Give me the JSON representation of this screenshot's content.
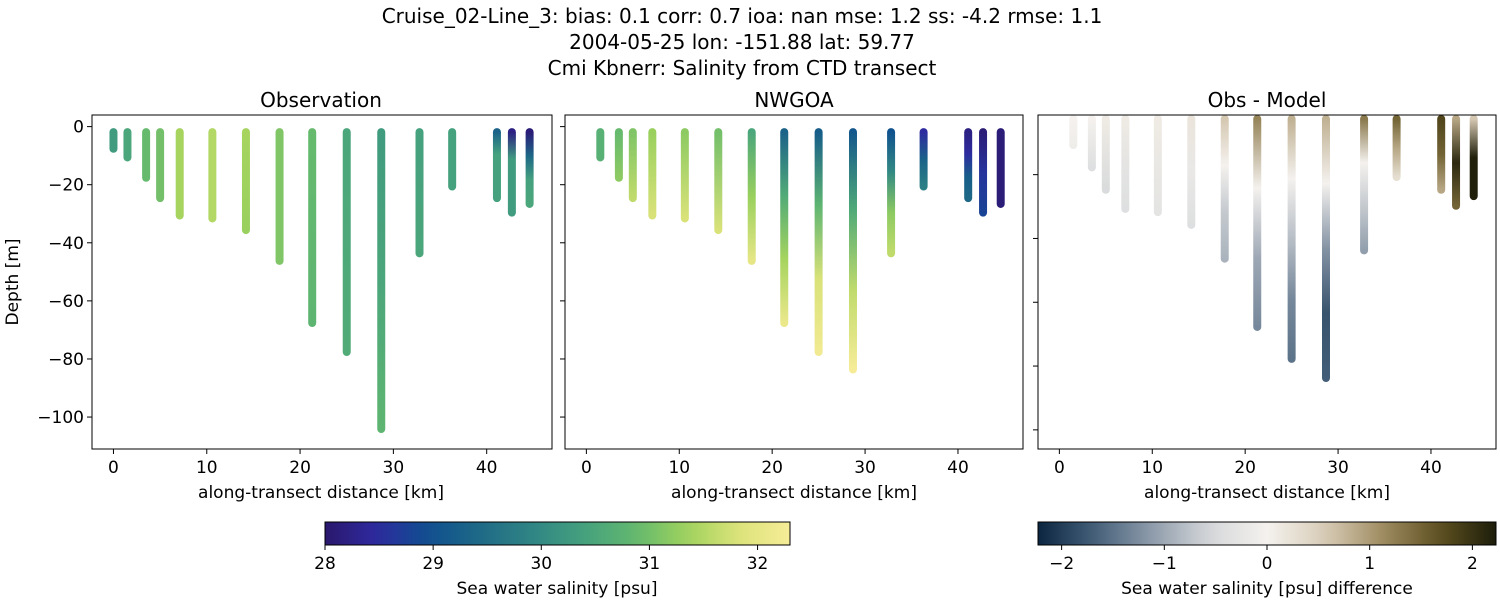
{
  "suptitle": {
    "line1": "Cruise_02-Line_3: bias: 0.1  corr: 0.7  ioa: nan  mse: 1.2  ss: -4.2  rmse: 1.1",
    "line2": "2004-05-25 lon: -151.88 lat: 59.77",
    "line3": "Cmi Kbnerr: Salinity from CTD transect"
  },
  "chart_data": [
    {
      "type": "scatter",
      "title": "Observation",
      "xlabel": "along-transect distance [km]",
      "ylabel": "Depth [m]",
      "xlim": [
        -2.3,
        47.0
      ],
      "ylim": [
        -111,
        4
      ],
      "xticks": [
        0,
        10,
        20,
        30,
        40
      ],
      "yticks": [
        0,
        -20,
        -40,
        -60,
        -80,
        -100
      ],
      "colormap": "haline",
      "stations": [
        {
          "x": 0,
          "max_depth": -9,
          "values": [
            30.3
          ]
        },
        {
          "x": 1.5,
          "max_depth": -12,
          "values": [
            30.5
          ]
        },
        {
          "x": 3.5,
          "max_depth": -19,
          "values": [
            30.9
          ]
        },
        {
          "x": 5.0,
          "max_depth": -26,
          "values": [
            31.0
          ]
        },
        {
          "x": 7.1,
          "max_depth": -32,
          "values": [
            31.4
          ]
        },
        {
          "x": 10.6,
          "max_depth": -33,
          "values": [
            31.5
          ]
        },
        {
          "x": 14.2,
          "max_depth": -37,
          "values": [
            31.4,
            31.3
          ]
        },
        {
          "x": 17.8,
          "max_depth": -47.6,
          "values": [
            31.1
          ]
        },
        {
          "x": 21.3,
          "max_depth": -69,
          "values": [
            30.9,
            30.8
          ]
        },
        {
          "x": 25.0,
          "max_depth": -79,
          "values": [
            30.5,
            30.6
          ]
        },
        {
          "x": 28.7,
          "max_depth": -105.5,
          "values": [
            30.3,
            30.5,
            30.8
          ]
        },
        {
          "x": 32.8,
          "max_depth": -45,
          "values": [
            30.4,
            30.5
          ]
        },
        {
          "x": 36.3,
          "max_depth": -22,
          "values": [
            30.4
          ]
        },
        {
          "x": 41.1,
          "max_depth": -26,
          "values": [
            29.3,
            30.4,
            30.4,
            30.4
          ]
        },
        {
          "x": 42.7,
          "max_depth": -31,
          "values": [
            28.2,
            30.3,
            30.3,
            30.3
          ]
        },
        {
          "x": 44.6,
          "max_depth": -28,
          "values": [
            28.1,
            29.4,
            30.4,
            30.5
          ]
        }
      ]
    },
    {
      "type": "scatter",
      "title": "NWGOA",
      "xlabel": "along-transect distance [km]",
      "xlim": [
        -2.3,
        47.0
      ],
      "ylim": [
        -111,
        4
      ],
      "xticks": [
        0,
        10,
        20,
        30,
        40
      ],
      "yticks": [
        0,
        -20,
        -40,
        -60,
        -80,
        -100
      ],
      "colormap": "haline",
      "stations": [
        {
          "x": 1.5,
          "max_depth": -12,
          "values": [
            30.7
          ]
        },
        {
          "x": 3.5,
          "max_depth": -19,
          "values": [
            30.9,
            31.2
          ]
        },
        {
          "x": 5.0,
          "max_depth": -26,
          "values": [
            31.1,
            31.6
          ]
        },
        {
          "x": 7.1,
          "max_depth": -32,
          "values": [
            31.3,
            31.8
          ]
        },
        {
          "x": 10.6,
          "max_depth": -33,
          "values": [
            31.2,
            31.8
          ]
        },
        {
          "x": 14.2,
          "max_depth": -37,
          "values": [
            31.0,
            31.8
          ]
        },
        {
          "x": 17.8,
          "max_depth": -47.6,
          "values": [
            30.5,
            31.3,
            32.0
          ]
        },
        {
          "x": 21.3,
          "max_depth": -69,
          "values": [
            29.3,
            30.6,
            31.4,
            32.1
          ]
        },
        {
          "x": 25.0,
          "max_depth": -79,
          "values": [
            29.2,
            30.8,
            31.8,
            32.2
          ]
        },
        {
          "x": 28.7,
          "max_depth": -85,
          "values": [
            29.1,
            30.6,
            31.6,
            32.3
          ]
        },
        {
          "x": 32.8,
          "max_depth": -45,
          "values": [
            29.0,
            30.0,
            31.2,
            31.6
          ]
        },
        {
          "x": 36.3,
          "max_depth": -22,
          "values": [
            28.5,
            29.3,
            29.8
          ]
        },
        {
          "x": 41.1,
          "max_depth": -26,
          "values": [
            28.2,
            28.5,
            29.2,
            29.4
          ]
        },
        {
          "x": 42.7,
          "max_depth": -31,
          "values": [
            28.1,
            28.6,
            28.8
          ]
        },
        {
          "x": 44.6,
          "max_depth": -28,
          "values": [
            28.1,
            28.1
          ]
        }
      ]
    },
    {
      "type": "scatter",
      "title": "Obs - Model",
      "xlabel": "along-transect distance [km]",
      "xlim": [
        -2.3,
        47.0
      ],
      "ylim": [
        -106,
        -1.3
      ],
      "xticks": [
        0,
        10,
        20,
        30,
        40
      ],
      "yticks": [
        -20,
        -40,
        -60,
        -80,
        -100
      ],
      "colormap": "diff",
      "stations": [
        {
          "x": 1.5,
          "max_depth": -12,
          "values": [
            0,
            -0.1
          ]
        },
        {
          "x": 3.5,
          "max_depth": -19,
          "values": [
            0,
            -0.4
          ]
        },
        {
          "x": 5.0,
          "max_depth": -26,
          "values": [
            0.1,
            -0.5
          ]
        },
        {
          "x": 7.1,
          "max_depth": -32,
          "values": [
            0.1,
            -0.3,
            -0.4
          ]
        },
        {
          "x": 10.6,
          "max_depth": -33,
          "values": [
            0.1,
            -0.3
          ]
        },
        {
          "x": 14.2,
          "max_depth": -37,
          "values": [
            0.2,
            -0.2,
            -0.4
          ]
        },
        {
          "x": 17.8,
          "max_depth": -47.6,
          "values": [
            0.6,
            0,
            -0.7,
            -0.9
          ]
        },
        {
          "x": 21.3,
          "max_depth": -69,
          "values": [
            1.2,
            0,
            -1.0,
            -1.3
          ]
        },
        {
          "x": 25.0,
          "max_depth": -79,
          "values": [
            0.8,
            0,
            -0.8,
            -1.3,
            -1.5
          ]
        },
        {
          "x": 28.7,
          "max_depth": -85,
          "values": [
            0.8,
            0,
            -1.2,
            -1.8,
            -1.7
          ]
        },
        {
          "x": 32.8,
          "max_depth": -45,
          "values": [
            1.3,
            0,
            -0.7,
            -1.1
          ]
        },
        {
          "x": 36.3,
          "max_depth": -22,
          "values": [
            1.5,
            0.9,
            0.3
          ]
        },
        {
          "x": 41.1,
          "max_depth": -26,
          "values": [
            1.8,
            1.5,
            0.9
          ]
        },
        {
          "x": 42.7,
          "max_depth": -31,
          "values": [
            0.9,
            2.1,
            1.5
          ]
        },
        {
          "x": 44.6,
          "max_depth": -28,
          "values": [
            0.6,
            2.2,
            2.2
          ]
        }
      ]
    }
  ],
  "colorbars": [
    {
      "label": "Sea water salinity [psu]",
      "range": [
        28,
        32.3
      ],
      "ticks": [
        "28",
        "29",
        "30",
        "31",
        "32"
      ],
      "tick_values": [
        28,
        29,
        30,
        31,
        32
      ],
      "colormap": "haline"
    },
    {
      "label": "Sea water salinity [psu] difference",
      "range": [
        -2.23,
        2.23
      ],
      "ticks": [
        "−2",
        "−1",
        "0",
        "1",
        "2"
      ],
      "tick_values": [
        -2,
        -1,
        0,
        1,
        2
      ],
      "colormap": "diff"
    }
  ],
  "colormaps": {
    "haline": [
      "#2a186c",
      "#2e2aa0",
      "#0f4f8f",
      "#1f6a86",
      "#2f8584",
      "#44a07e",
      "#62b86f",
      "#9fd25c",
      "#dce37a",
      "#f6ec98"
    ],
    "diff": [
      "#0b2540",
      "#45607a",
      "#8f9cab",
      "#d6d8da",
      "#f4f1ee",
      "#d9cdb8",
      "#a08d63",
      "#5f5121",
      "#1c1d0a"
    ]
  }
}
